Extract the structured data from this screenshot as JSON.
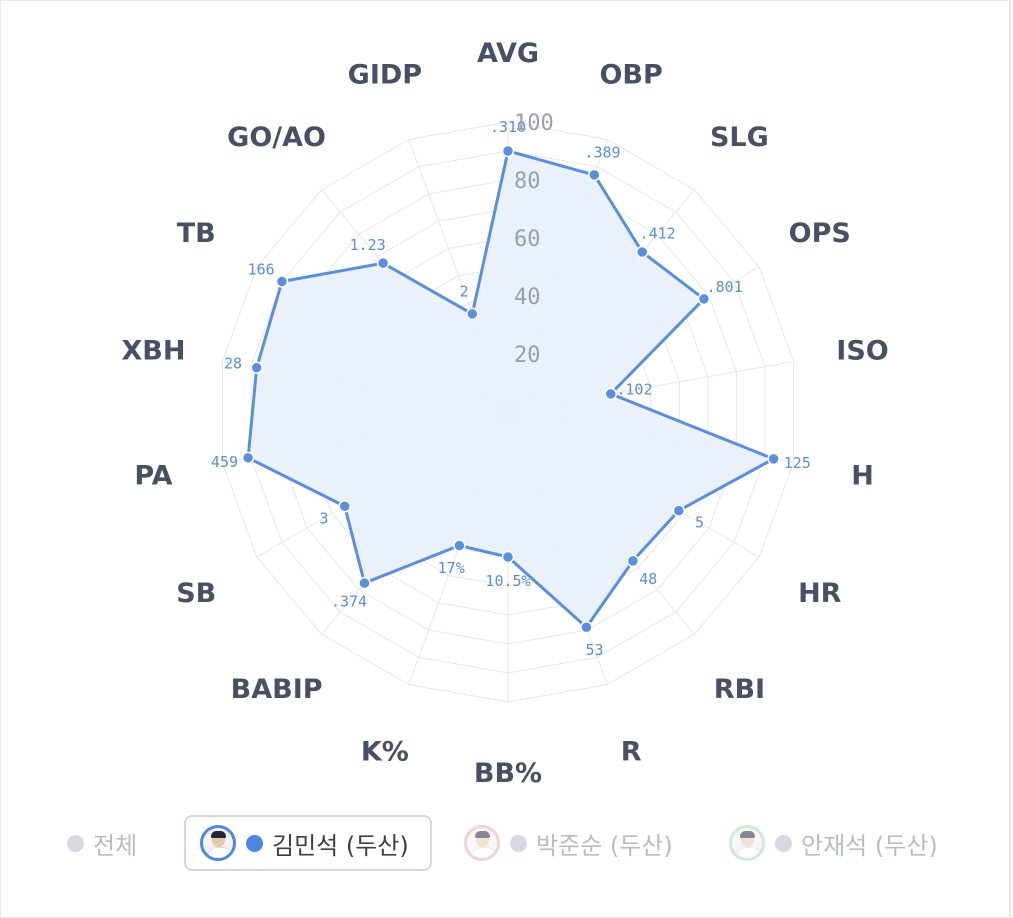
{
  "chart_data": {
    "type": "radar",
    "axes": [
      "AVG",
      "OBP",
      "SLG",
      "OPS",
      "ISO",
      "H",
      "HR",
      "RBI",
      "R",
      "BB%",
      "K%",
      "BABIP",
      "SB",
      "PA",
      "XBH",
      "TB",
      "GO/AO",
      "GIDP"
    ],
    "radial_ticks": [
      "20",
      "40",
      "60",
      "80",
      "100"
    ],
    "rlim": [
      0,
      100
    ],
    "series": [
      {
        "name": "김민석 (두산)",
        "values": [
          90,
          87,
          72,
          78,
          36,
          93,
          68,
          67,
          79,
          50,
          49,
          77,
          65,
          91,
          88,
          90,
          67,
          36
        ],
        "value_labels": [
          ".310",
          ".389",
          ".412",
          ".801",
          ".102",
          "125",
          "5",
          "48",
          "53",
          "10.5%",
          "17%",
          ".374",
          "3",
          "459",
          "28",
          "166",
          "1.23",
          "2"
        ]
      }
    ],
    "colors": {
      "series_line": "#5b8fdb",
      "series_fill": "#e8f0fb",
      "grid": "#e5e7eb",
      "value_text": "#5b8fcf"
    },
    "grid": true
  },
  "legend": {
    "items": [
      {
        "label": "전체",
        "active": false,
        "avatar": false,
        "dot_color": "#d6d9e0"
      },
      {
        "label": "김민석 (두산)",
        "active": true,
        "avatar": true,
        "dot_color": "#4f86e0",
        "ring_color": "#4f86e0"
      },
      {
        "label": "박준순 (두산)",
        "active": false,
        "avatar": true,
        "dot_color": "#d6d9e0",
        "ring_color": "#e9b0b4"
      },
      {
        "label": "안재석 (두산)",
        "active": false,
        "avatar": true,
        "dot_color": "#d6d9e0",
        "ring_color": "#a9dcb8"
      }
    ]
  }
}
